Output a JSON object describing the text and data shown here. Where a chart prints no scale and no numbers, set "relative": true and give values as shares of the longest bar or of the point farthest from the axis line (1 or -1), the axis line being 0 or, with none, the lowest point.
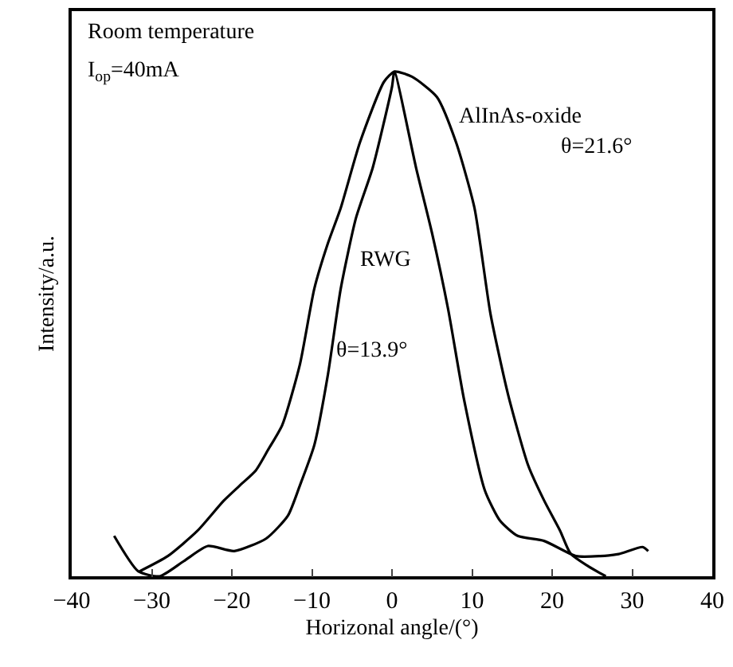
{
  "chart_data": {
    "type": "line",
    "relative": true,
    "xlabel": "Horizonal angle/(°)",
    "ylabel": "Intensity/a.u.",
    "xlim": [
      -40,
      40
    ],
    "xticks": [
      -40,
      -30,
      -20,
      -10,
      0,
      10,
      20,
      30,
      40
    ],
    "legend": false,
    "marker": "none",
    "line_style": "solid",
    "annotations": [
      "Room temperature",
      "I$_{op}$=40mA",
      "θ=21.6°",
      "θ=13.9°"
    ],
    "series": [
      {
        "name": "AlInAs-oxide",
        "color": "#000000",
        "x": [
          -31.5,
          -28,
          -24.3,
          -21,
          -19,
          -17,
          -15.5,
          -13.7,
          -11.5,
          -9.7,
          -8,
          -6.4,
          -4,
          -1,
          0.3,
          2.5,
          5.6,
          8,
          10.3,
          12.3,
          14.5,
          17,
          19,
          21,
          22.3,
          24.5,
          26.7
        ],
        "values": [
          0.01,
          0.04,
          0.09,
          0.15,
          0.18,
          0.21,
          0.25,
          0.3,
          0.42,
          0.57,
          0.66,
          0.73,
          0.86,
          0.98,
          1,
          0.99,
          0.95,
          0.86,
          0.73,
          0.52,
          0.36,
          0.22,
          0.15,
          0.09,
          0.045,
          0.02,
          0
        ]
      },
      {
        "name": "RWG",
        "color": "#000000",
        "x": [
          -34.7,
          -31.7,
          -29,
          -26,
          -23,
          -19.7,
          -15.7,
          -13,
          -11.5,
          -9.7,
          -8,
          -6.4,
          -4.5,
          -2.4,
          0,
          0.3,
          3,
          5,
          7,
          9,
          11.6,
          13.5,
          15.7,
          19,
          23,
          26,
          28.3,
          31.3,
          32
        ],
        "values": [
          0.08,
          0.01,
          0,
          0.03,
          0.06,
          0.05,
          0.075,
          0.12,
          0.18,
          0.26,
          0.4,
          0.57,
          0.71,
          0.81,
          0.97,
          1,
          0.81,
          0.68,
          0.53,
          0.35,
          0.17,
          0.11,
          0.08,
          0.07,
          0.04,
          0.04,
          0.044,
          0.058,
          0.05
        ]
      }
    ]
  }
}
